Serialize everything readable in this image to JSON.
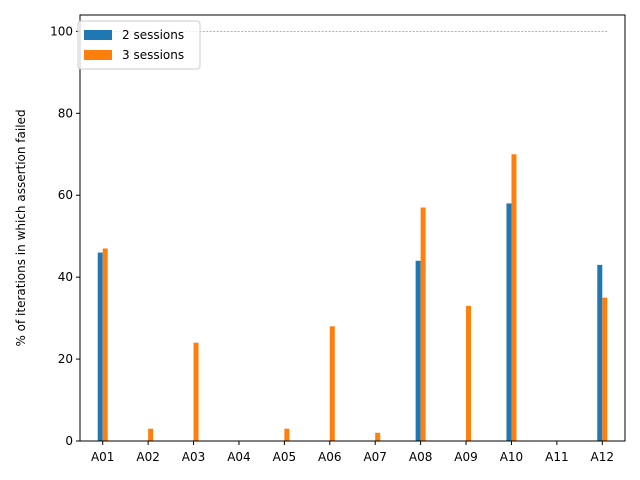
{
  "chart_data": {
    "type": "bar",
    "categories": [
      "A01",
      "A02",
      "A03",
      "A04",
      "A05",
      "A06",
      "A07",
      "A08",
      "A09",
      "A10",
      "A11",
      "A12"
    ],
    "series": [
      {
        "name": "2 sessions",
        "color": "#1f77b4",
        "values": [
          46,
          0,
          0,
          0,
          0,
          0,
          0,
          44,
          0,
          58,
          0,
          43
        ]
      },
      {
        "name": "3 sessions",
        "color": "#ff7f0e",
        "values": [
          47,
          3,
          24,
          0,
          3,
          28,
          2,
          57,
          33,
          70,
          0,
          35
        ]
      }
    ],
    "reference_line": {
      "y": 100,
      "color": "#1f77b4",
      "style": "dashed"
    },
    "ylabel": "% of iterations in which assertion failed",
    "ylim": [
      0,
      104
    ],
    "yticks": [
      0,
      20,
      40,
      60,
      80,
      100
    ],
    "grid": false,
    "legend_position": "top-left"
  }
}
